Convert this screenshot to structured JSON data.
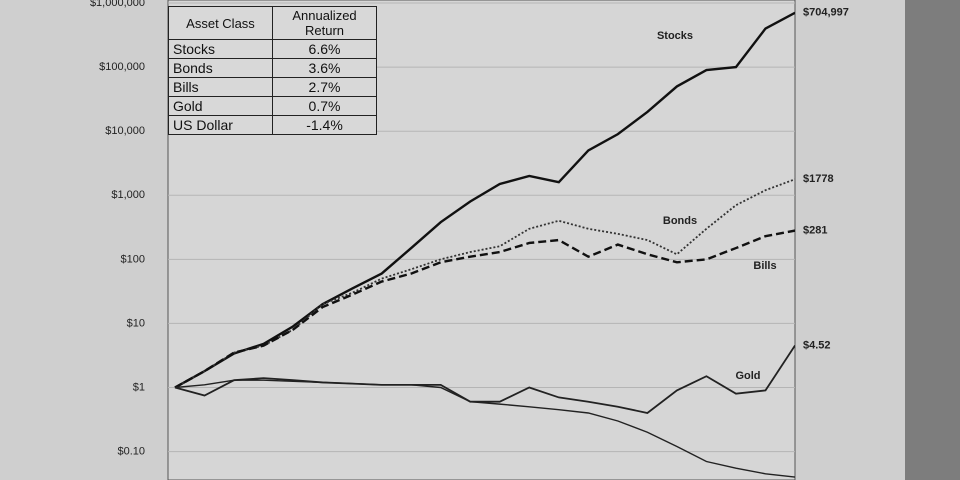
{
  "chart_data": {
    "type": "line",
    "categories": [
      null,
      null,
      null,
      null,
      null,
      null,
      null,
      null,
      null,
      null,
      null,
      null,
      null,
      null,
      null,
      null,
      null,
      null,
      null,
      null,
      null,
      null
    ],
    "log_scale": true,
    "grid": true,
    "ylim": [
      0.036,
      1116000
    ],
    "yticks": [
      {
        "value": 1000000,
        "label": "$1,000,000"
      },
      {
        "value": 100000,
        "label": "$100,000"
      },
      {
        "value": 10000,
        "label": "$10,000"
      },
      {
        "value": 1000,
        "label": "$1,000"
      },
      {
        "value": 100,
        "label": "$100"
      },
      {
        "value": 10,
        "label": "$10"
      },
      {
        "value": 1,
        "label": "$1"
      },
      {
        "value": 0.1,
        "label": "$0.10"
      }
    ],
    "series": [
      {
        "name": "Stocks",
        "color": "#111111",
        "end_label": "$704,997",
        "values": [
          1,
          1.8,
          3.4,
          4.8,
          9,
          20,
          35,
          60,
          150,
          380,
          800,
          1500,
          2000,
          1600,
          5000,
          9000,
          20000,
          50000,
          90000,
          100000,
          400000,
          704997
        ]
      },
      {
        "name": "Bonds",
        "color": "#333333",
        "end_label": "$1778",
        "values": [
          1,
          1.8,
          3.5,
          4.5,
          8,
          20,
          30,
          50,
          70,
          100,
          130,
          160,
          300,
          400,
          300,
          250,
          200,
          120,
          300,
          700,
          1200,
          1778
        ]
      },
      {
        "name": "Bills",
        "color": "#111111",
        "end_label": "$281",
        "values": [
          1,
          1.8,
          3.5,
          4.5,
          8,
          18,
          28,
          45,
          60,
          90,
          110,
          130,
          180,
          200,
          110,
          170,
          120,
          90,
          100,
          150,
          230,
          281
        ]
      },
      {
        "name": "Gold",
        "color": "#222222",
        "end_label": "$4.52",
        "values": [
          1,
          0.75,
          1.3,
          1.4,
          1.3,
          1.2,
          1.15,
          1.1,
          1.1,
          1.1,
          0.6,
          0.6,
          1,
          0.7,
          0.6,
          0.5,
          0.4,
          0.9,
          1.5,
          0.8,
          0.9,
          4.52
        ]
      },
      {
        "name": "US Dollar",
        "color": "#222222",
        "values": [
          1,
          1.1,
          1.3,
          1.3,
          1.25,
          1.2,
          1.15,
          1.1,
          1.1,
          1.0,
          0.6,
          0.55,
          0.5,
          0.45,
          0.4,
          0.3,
          0.2,
          0.12,
          0.07,
          0.055,
          0.045,
          0.04
        ]
      }
    ]
  },
  "table": {
    "header": [
      "Asset Class",
      "Annualized Return"
    ],
    "rows": [
      [
        "Stocks",
        "6.6%"
      ],
      [
        "Bonds",
        "3.6%"
      ],
      [
        "Bills",
        "2.7%"
      ],
      [
        "Gold",
        "0.7%"
      ],
      [
        "US Dollar",
        "-1.4%"
      ]
    ]
  }
}
